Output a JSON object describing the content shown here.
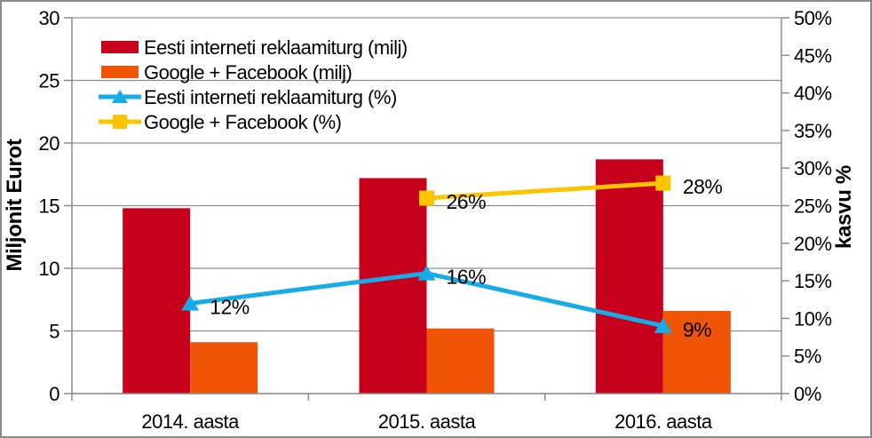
{
  "chart_data": {
    "type": "bar",
    "subtype": "bar-line-combo",
    "categories": [
      "2014. aasta",
      "2015. aasta",
      "2016. aasta"
    ],
    "bar_series": [
      {
        "name": "Eesti interneti reklaamiturg (milj)",
        "color": "#C7001B",
        "axis": "left",
        "values": [
          14.8,
          17.2,
          18.7
        ]
      },
      {
        "name": "Google + Facebook (milj)",
        "color": "#F05406",
        "axis": "left",
        "values": [
          4.1,
          5.2,
          6.6
        ]
      }
    ],
    "line_series": [
      {
        "name": "Eesti interneti reklaamiturg (%)",
        "color": "#17ACE8",
        "marker": "triangle",
        "axis": "right",
        "values": [
          12,
          16,
          9
        ],
        "point_labels": [
          "12%",
          "16%",
          "9%"
        ]
      },
      {
        "name": "Google + Facebook (%)",
        "color": "#FDC400",
        "marker": "square",
        "axis": "right",
        "values": [
          null,
          26,
          28
        ],
        "point_labels": [
          null,
          "26%",
          "28%"
        ]
      }
    ],
    "left_axis": {
      "title": "Miljonit Eurot",
      "min": 0,
      "max": 30,
      "step": 5,
      "tick_labels": [
        "0",
        "5",
        "10",
        "15",
        "20",
        "25",
        "30"
      ]
    },
    "right_axis": {
      "title": "kasvu %",
      "min": 0,
      "max": 50,
      "step": 5,
      "tick_labels": [
        "0%",
        "5%",
        "10%",
        "15%",
        "20%",
        "25%",
        "30%",
        "35%",
        "40%",
        "45%",
        "50%"
      ]
    },
    "grid": "horizontal-major-on",
    "legend_position": "inside-top-left",
    "title": "",
    "xlabel": "",
    "ylabel_left": "Miljonit Eurot",
    "ylabel_right": "kasvu %"
  },
  "colors": {
    "background": "#FFFFFF",
    "frame_border": "#8A8A8A",
    "gridline": "#8E8E8E",
    "axis_line": "#8C8C8C",
    "text": "#000000",
    "bar_red": "#C7001B",
    "bar_orange": "#F05406",
    "line_blue": "#17ACE8",
    "line_yellow": "#FDC400"
  }
}
